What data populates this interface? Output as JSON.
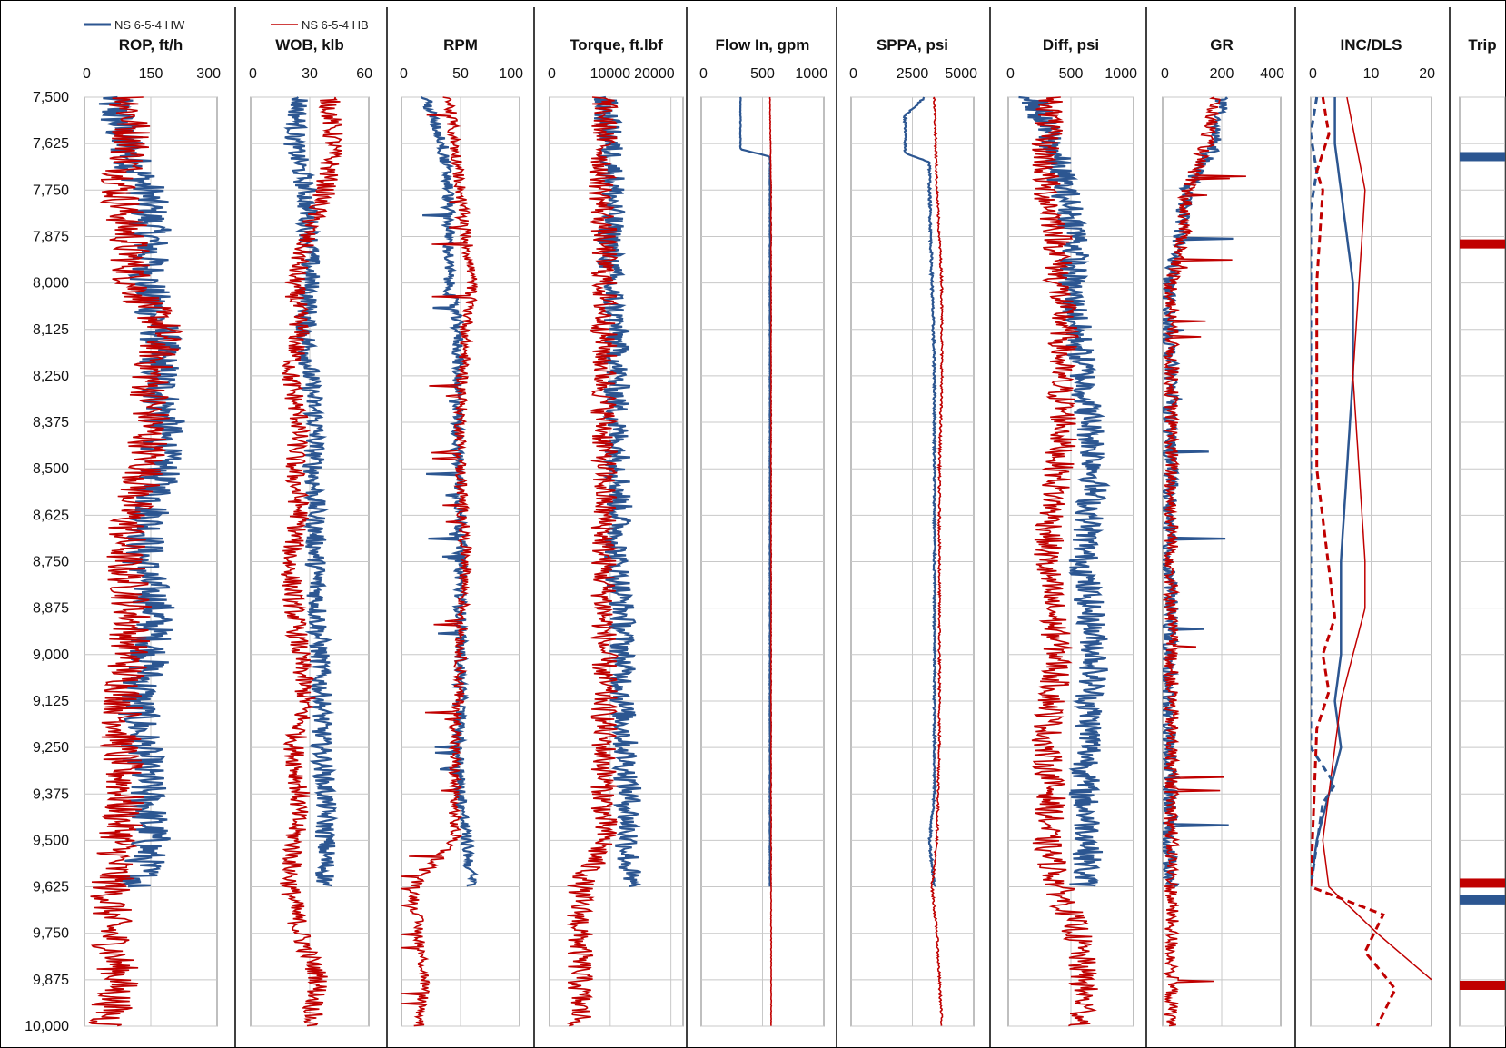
{
  "chart_data": {
    "type": "line",
    "legend": [
      {
        "name": "NS 6-5-4 HW",
        "color": "#2c5691"
      },
      {
        "name": "NS 6-5-4 HB",
        "color": "#c00000"
      }
    ],
    "depth_axis": {
      "ticks": [
        "7,500",
        "7,625",
        "7,750",
        "7,875",
        "8,000",
        "8,125",
        "8,250",
        "8,375",
        "8,500",
        "8,625",
        "8,750",
        "8,875",
        "9,000",
        "9,125",
        "9,250",
        "9,375",
        "9,500",
        "9,625",
        "9,750",
        "9,875",
        "10,000"
      ],
      "range": [
        7500,
        10000
      ],
      "reversed": true
    },
    "grid": true,
    "tracks": [
      {
        "title": "ROP, ft/h",
        "ticks": [
          "0",
          "150",
          "300"
        ],
        "range": [
          0,
          300
        ],
        "series": [
          {
            "name": "NS 6-5-4 HW",
            "depth": [
              7500,
              7625,
              7750,
              7875,
              8000,
              8125,
              8250,
              8375,
              8500,
              8625,
              8750,
              8875,
              9000,
              9125,
              9250,
              9375,
              9500,
              9625
            ],
            "values": [
              60,
              90,
              140,
              150,
              140,
              170,
              170,
              180,
              170,
              150,
              130,
              160,
              150,
              120,
              130,
              140,
              150,
              120
            ]
          },
          {
            "name": "NS 6-5-4 HB",
            "depth": [
              7500,
              7625,
              7750,
              7875,
              8000,
              8125,
              8250,
              8375,
              8500,
              8625,
              8750,
              8875,
              9000,
              9125,
              9250,
              9375,
              9500,
              9625,
              9750,
              9875,
              10000
            ],
            "values": [
              100,
              110,
              80,
              100,
              110,
              180,
              150,
              150,
              140,
              100,
              90,
              110,
              100,
              90,
              80,
              90,
              80,
              60,
              60,
              80,
              50
            ]
          }
        ]
      },
      {
        "title": "WOB, klb",
        "ticks": [
          "0",
          "30",
          "60"
        ],
        "range": [
          0,
          60
        ],
        "series": [
          {
            "name": "NS 6-5-4 HW",
            "depth": [
              7500,
              7625,
              7750,
              7875,
              8000,
              8125,
              8250,
              8375,
              8500,
              8625,
              8750,
              8875,
              9000,
              9125,
              9250,
              9375,
              9500,
              9625
            ],
            "values": [
              25,
              22,
              28,
              30,
              30,
              28,
              30,
              33,
              32,
              33,
              33,
              34,
              35,
              36,
              36,
              38,
              38,
              38
            ]
          },
          {
            "name": "NS 6-5-4 HB",
            "depth": [
              7500,
              7625,
              7750,
              7875,
              8000,
              8125,
              8250,
              8375,
              8500,
              8625,
              8750,
              8875,
              9000,
              9125,
              9250,
              9375,
              9500,
              9625,
              9750,
              9875,
              10000
            ],
            "values": [
              40,
              42,
              38,
              28,
              22,
              25,
              20,
              25,
              22,
              25,
              20,
              22,
              25,
              28,
              22,
              25,
              22,
              20,
              25,
              35,
              30
            ]
          }
        ]
      },
      {
        "title": "RPM",
        "ticks": [
          "0",
          "50",
          "100"
        ],
        "range": [
          0,
          100
        ],
        "series": [
          {
            "name": "NS 6-5-4 HW",
            "depth": [
              7500,
              7625,
              7750,
              7875,
              8000,
              8125,
              8250,
              8375,
              8500,
              8625,
              8750,
              8875,
              9000,
              9125,
              9250,
              9375,
              9500,
              9625
            ],
            "values": [
              20,
              35,
              40,
              40,
              40,
              48,
              48,
              48,
              48,
              50,
              50,
              50,
              50,
              50,
              48,
              50,
              55,
              60
            ]
          },
          {
            "name": "NS 6-5-4 HB",
            "depth": [
              7500,
              7625,
              7750,
              7875,
              8000,
              8125,
              8250,
              8375,
              8500,
              8625,
              8750,
              8875,
              9000,
              9125,
              9250,
              9375,
              9500,
              9625,
              9750,
              9875,
              10000
            ],
            "values": [
              40,
              45,
              50,
              55,
              60,
              55,
              52,
              50,
              50,
              52,
              55,
              52,
              50,
              48,
              45,
              45,
              45,
              10,
              15,
              20,
              15
            ]
          }
        ]
      },
      {
        "title": "Torque, ft.lbf",
        "ticks": [
          "0",
          "10000",
          "20000"
        ],
        "range": [
          0,
          22000
        ],
        "series": [
          {
            "name": "NS 6-5-4 HW",
            "depth": [
              7500,
              7625,
              7750,
              7875,
              8000,
              8125,
              8250,
              8375,
              8500,
              8625,
              8750,
              8875,
              9000,
              9125,
              9250,
              9375,
              9500,
              9625
            ],
            "values": [
              9000,
              10000,
              10500,
              10000,
              10000,
              11000,
              11000,
              11000,
              11500,
              11500,
              11000,
              12000,
              12000,
              12000,
              12500,
              13000,
              13000,
              13000
            ]
          },
          {
            "name": "NS 6-5-4 HB",
            "depth": [
              7500,
              7625,
              7750,
              7875,
              8000,
              8125,
              8250,
              8375,
              8500,
              8625,
              8750,
              8875,
              9000,
              9125,
              9250,
              9375,
              9500,
              9625,
              9750,
              9875,
              10000
            ],
            "values": [
              9000,
              9000,
              8500,
              9000,
              9000,
              9000,
              9000,
              9000,
              9000,
              9000,
              9000,
              9000,
              9000,
              9000,
              9000,
              9000,
              9000,
              5000,
              5000,
              5000,
              5000
            ]
          }
        ]
      },
      {
        "title": "Flow In, gpm",
        "ticks": [
          "0",
          "500",
          "1000"
        ],
        "range": [
          0,
          1000
        ],
        "series": [
          {
            "name": "NS 6-5-4 HW",
            "depth": [
              7500,
              7640,
              7660,
              7750,
              8000,
              8500,
              9000,
              9500,
              9625
            ],
            "values": [
              320,
              320,
              560,
              560,
              560,
              560,
              560,
              560,
              560
            ]
          },
          {
            "name": "NS 6-5-4 HB",
            "depth": [
              7500,
              7750,
              8000,
              8500,
              9000,
              9500,
              9625,
              9750,
              9875,
              10000
            ],
            "values": [
              560,
              570,
              570,
              570,
              570,
              570,
              570,
              570,
              570,
              570
            ]
          }
        ]
      },
      {
        "title": "SPPA, psi",
        "ticks": [
          "0",
          "2500",
          "5000"
        ],
        "range": [
          0,
          5000
        ],
        "series": [
          {
            "name": "NS 6-5-4 HW",
            "depth": [
              7500,
              7550,
              7650,
              7675,
              7750,
              8000,
              8250,
              8500,
              8750,
              9000,
              9250,
              9375,
              9500,
              9625
            ],
            "values": [
              3000,
              2200,
              2200,
              3200,
              3200,
              3300,
              3400,
              3400,
              3400,
              3400,
              3400,
              3400,
              3200,
              3400
            ]
          },
          {
            "name": "NS 6-5-4 HB",
            "depth": [
              7500,
              7750,
              8000,
              8250,
              8500,
              8750,
              9000,
              9250,
              9500,
              9625,
              9750,
              9875,
              10000
            ],
            "values": [
              3400,
              3500,
              3700,
              3700,
              3600,
              3600,
              3600,
              3600,
              3500,
              3300,
              3500,
              3600,
              3700
            ]
          }
        ]
      },
      {
        "title": "Diff, psi",
        "ticks": [
          "0",
          "500",
          "1000"
        ],
        "range": [
          0,
          1000
        ],
        "series": [
          {
            "name": "NS 6-5-4 HW",
            "depth": [
              7500,
              7625,
              7750,
              7875,
              8000,
              8125,
              8250,
              8375,
              8500,
              8625,
              8750,
              8875,
              9000,
              9125,
              9250,
              9375,
              9500,
              9625
            ],
            "values": [
              200,
              350,
              450,
              550,
              500,
              550,
              600,
              650,
              700,
              650,
              600,
              650,
              700,
              650,
              650,
              600,
              650,
              600
            ]
          },
          {
            "name": "NS 6-5-4 HB",
            "depth": [
              7500,
              7625,
              7750,
              7875,
              8000,
              8125,
              8250,
              8375,
              8500,
              8625,
              8750,
              8875,
              9000,
              9125,
              9250,
              9375,
              9500,
              9625,
              9750,
              9875,
              10000
            ],
            "values": [
              350,
              300,
              300,
              400,
              400,
              450,
              400,
              450,
              400,
              350,
              300,
              350,
              400,
              350,
              300,
              350,
              300,
              400,
              550,
              600,
              600
            ]
          }
        ]
      },
      {
        "title": "GR",
        "ticks": [
          "0",
          "200",
          "400"
        ],
        "range": [
          0,
          400
        ],
        "series": [
          {
            "name": "NS 6-5-4 HW",
            "depth": [
              7500,
              7625,
              7750,
              7875,
              8000,
              8125,
              8250,
              8375,
              8500,
              8625,
              8750,
              8875,
              9000,
              9125,
              9250,
              9375,
              9500,
              9625
            ],
            "values": [
              200,
              180,
              80,
              60,
              20,
              20,
              30,
              20,
              30,
              20,
              20,
              30,
              20,
              20,
              20,
              30,
              20,
              30
            ]
          },
          {
            "name": "NS 6-5-4 HB",
            "depth": [
              7500,
              7625,
              7750,
              7875,
              8000,
              8125,
              8250,
              8375,
              8500,
              8625,
              8750,
              8875,
              9000,
              9125,
              9250,
              9375,
              9500,
              9625,
              9750,
              9875,
              10000
            ],
            "values": [
              180,
              150,
              80,
              70,
              30,
              30,
              30,
              30,
              30,
              30,
              30,
              30,
              30,
              30,
              30,
              30,
              30,
              30,
              30,
              30,
              30
            ]
          }
        ]
      },
      {
        "title": "INC/DLS",
        "ticks": [
          "0",
          "10",
          "20"
        ],
        "range": [
          0,
          20
        ],
        "series": [
          {
            "name": "NS 6-5-4 HW INC",
            "depth": [
              7500,
              7625,
              7750,
              8000,
              8250,
              8500,
              8750,
              9000,
              9125,
              9250,
              9375,
              9500,
              9625
            ],
            "values": [
              4,
              4,
              5,
              7,
              7,
              6,
              5,
              5,
              4,
              5,
              3,
              1,
              0
            ]
          },
          {
            "name": "NS 6-5-4 HB INC",
            "depth": [
              7500,
              7750,
              8000,
              8250,
              8500,
              8750,
              8875,
              9000,
              9125,
              9250,
              9375,
              9500,
              9625,
              9750,
              9875
            ],
            "values": [
              6,
              9,
              8,
              7,
              8,
              9,
              9,
              7,
              5,
              4,
              3,
              2,
              3,
              11,
              20
            ]
          },
          {
            "name": "NS 6-5-4 HW DLS",
            "depth": [
              7500,
              7600,
              7700,
              7800,
              8000,
              8500,
              9000,
              9250,
              9350,
              9400,
              9625
            ],
            "values": [
              1,
              0,
              1,
              0,
              0,
              0,
              0,
              0,
              4,
              2,
              0
            ]
          },
          {
            "name": "NS 6-5-4 HB DLS",
            "depth": [
              7500,
              7600,
              7700,
              7750,
              8000,
              8500,
              8900,
              9000,
              9100,
              9200,
              9625,
              9700,
              9800,
              9900,
              10000
            ],
            "values": [
              2,
              3,
              1,
              2,
              1,
              1,
              4,
              2,
              3,
              1,
              0,
              12,
              9,
              14,
              11
            ]
          }
        ]
      },
      {
        "title": "Trip",
        "ticks": [],
        "range": [
          0,
          1
        ],
        "markers": [
          {
            "name": "NS 6-5-4 HW",
            "depth": [
              7660,
              9660
            ]
          },
          {
            "name": "NS 6-5-4 HB",
            "depth": [
              7895,
              9615,
              9890
            ]
          }
        ]
      }
    ]
  }
}
